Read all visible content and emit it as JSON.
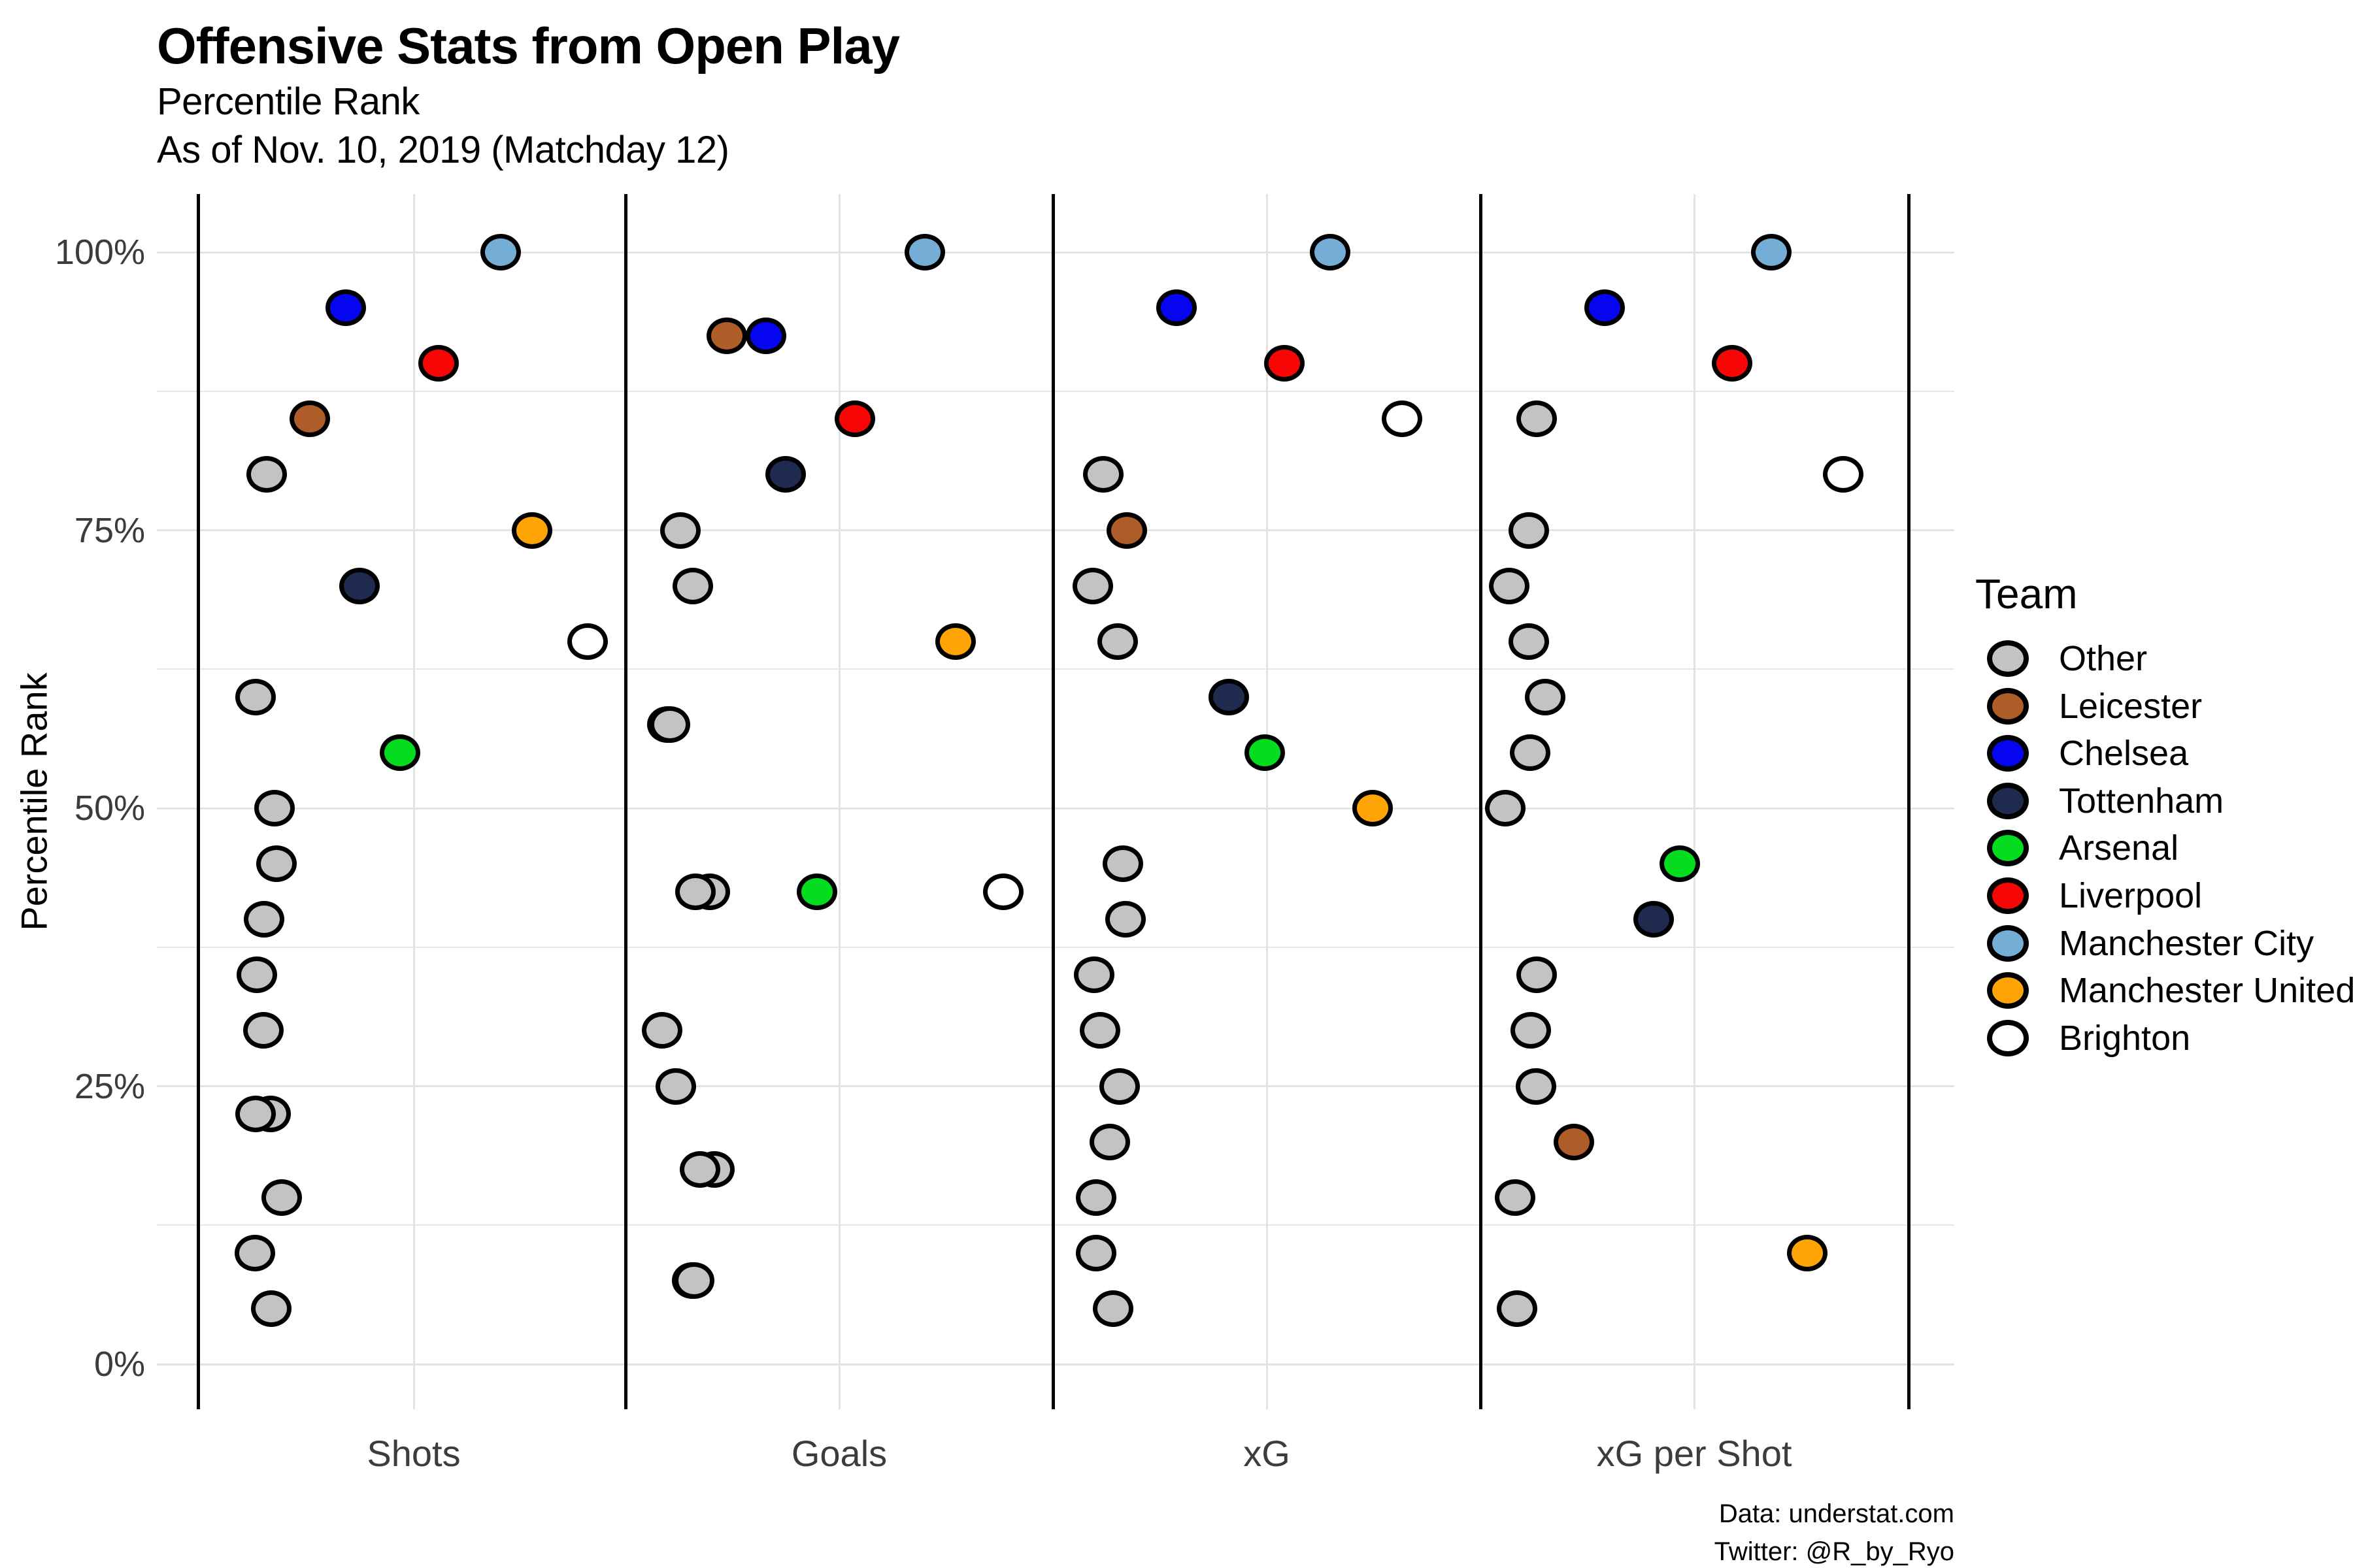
{
  "titles": {
    "title": "Offensive Stats from Open Play",
    "subtitle1": "Percentile Rank",
    "subtitle2": "As of Nov. 10, 2019 (Matchday 12)"
  },
  "y_axis_title": "Percentile Rank",
  "footer": {
    "line1": "Data: understat.com",
    "line2": "Twitter: @R_by_Ryo"
  },
  "legend": {
    "title": "Team",
    "teams": [
      {
        "name": "Other",
        "color": "#c3c3c3"
      },
      {
        "name": "Leicester",
        "color": "#ae5c28"
      },
      {
        "name": "Chelsea",
        "color": "#0505f0"
      },
      {
        "name": "Tottenham",
        "color": "#1f2a4f"
      },
      {
        "name": "Arsenal",
        "color": "#04dc1f"
      },
      {
        "name": "Liverpool",
        "color": "#f80606"
      },
      {
        "name": "Manchester City",
        "color": "#74aed6"
      },
      {
        "name": "Manchester United",
        "color": "#ffa405"
      },
      {
        "name": "Brighton",
        "color": "#ffffff"
      }
    ]
  },
  "chart_data": {
    "type": "scatter",
    "categories": [
      "Shots",
      "Goals",
      "xG",
      "xG per Shot"
    ],
    "ylabel": "Percentile Rank",
    "ylim": [
      0,
      100
    ],
    "y_major_ticks": [
      0,
      25,
      50,
      75,
      100
    ],
    "y_tick_labels": [
      "0%",
      "25%",
      "50%",
      "75%",
      "100%"
    ],
    "y_minor_ticks": [
      12.5,
      37.5,
      62.5,
      87.5
    ],
    "legend_position": "right",
    "grid": "on",
    "points": [
      {
        "stat": "Shots",
        "team": "Other",
        "pct": 80,
        "x": 408
      },
      {
        "stat": "Shots",
        "team": "Other",
        "pct": 60,
        "x": 391
      },
      {
        "stat": "Shots",
        "team": "Other",
        "pct": 50,
        "x": 420
      },
      {
        "stat": "Shots",
        "team": "Other",
        "pct": 45,
        "x": 423
      },
      {
        "stat": "Shots",
        "team": "Other",
        "pct": 40,
        "x": 404
      },
      {
        "stat": "Shots",
        "team": "Other",
        "pct": 35,
        "x": 393
      },
      {
        "stat": "Shots",
        "team": "Other",
        "pct": 30,
        "x": 403
      },
      {
        "stat": "Shots",
        "team": "Other",
        "pct": 22.5,
        "x": 414
      },
      {
        "stat": "Shots",
        "team": "Other",
        "pct": 22.5,
        "x": 391
      },
      {
        "stat": "Shots",
        "team": "Other",
        "pct": 15,
        "x": 431
      },
      {
        "stat": "Shots",
        "team": "Other",
        "pct": 10,
        "x": 390
      },
      {
        "stat": "Shots",
        "team": "Other",
        "pct": 5,
        "x": 415
      },
      {
        "stat": "Shots",
        "team": "Leicester",
        "pct": 85,
        "x": 474
      },
      {
        "stat": "Shots",
        "team": "Chelsea",
        "pct": 95,
        "x": 529
      },
      {
        "stat": "Shots",
        "team": "Tottenham",
        "pct": 70,
        "x": 550
      },
      {
        "stat": "Shots",
        "team": "Arsenal",
        "pct": 55,
        "x": 612
      },
      {
        "stat": "Shots",
        "team": "Liverpool",
        "pct": 90,
        "x": 671
      },
      {
        "stat": "Shots",
        "team": "Manchester City",
        "pct": 100,
        "x": 766
      },
      {
        "stat": "Shots",
        "team": "Manchester United",
        "pct": 75,
        "x": 814
      },
      {
        "stat": "Shots",
        "team": "Brighton",
        "pct": 65,
        "x": 899
      },
      {
        "stat": "Goals",
        "team": "Other",
        "pct": 75,
        "x": 1041
      },
      {
        "stat": "Goals",
        "team": "Other",
        "pct": 70,
        "x": 1060
      },
      {
        "stat": "Goals",
        "team": "Other",
        "pct": 57.5,
        "x": 1021
      },
      {
        "stat": "Goals",
        "team": "Other",
        "pct": 57.5,
        "x": 1025
      },
      {
        "stat": "Goals",
        "team": "Other",
        "pct": 42.5,
        "x": 1086
      },
      {
        "stat": "Goals",
        "team": "Other",
        "pct": 42.5,
        "x": 1064
      },
      {
        "stat": "Goals",
        "team": "Other",
        "pct": 30,
        "x": 1013
      },
      {
        "stat": "Goals",
        "team": "Other",
        "pct": 25,
        "x": 1034
      },
      {
        "stat": "Goals",
        "team": "Other",
        "pct": 17.5,
        "x": 1093
      },
      {
        "stat": "Goals",
        "team": "Other",
        "pct": 17.5,
        "x": 1071
      },
      {
        "stat": "Goals",
        "team": "Other",
        "pct": 7.5,
        "x": 1059
      },
      {
        "stat": "Goals",
        "team": "Other",
        "pct": 7.5,
        "x": 1062
      },
      {
        "stat": "Goals",
        "team": "Leicester",
        "pct": 92.5,
        "x": 1112
      },
      {
        "stat": "Goals",
        "team": "Chelsea",
        "pct": 92.5,
        "x": 1172
      },
      {
        "stat": "Goals",
        "team": "Tottenham",
        "pct": 80,
        "x": 1202
      },
      {
        "stat": "Goals",
        "team": "Arsenal",
        "pct": 42.5,
        "x": 1250
      },
      {
        "stat": "Goals",
        "team": "Liverpool",
        "pct": 85,
        "x": 1308
      },
      {
        "stat": "Goals",
        "team": "Manchester City",
        "pct": 100,
        "x": 1415
      },
      {
        "stat": "Goals",
        "team": "Manchester United",
        "pct": 65,
        "x": 1462
      },
      {
        "stat": "Goals",
        "team": "Brighton",
        "pct": 42.5,
        "x": 1535
      },
      {
        "stat": "xG",
        "team": "Other",
        "pct": 80,
        "x": 1688
      },
      {
        "stat": "xG",
        "team": "Other",
        "pct": 70,
        "x": 1672
      },
      {
        "stat": "xG",
        "team": "Other",
        "pct": 65,
        "x": 1710
      },
      {
        "stat": "xG",
        "team": "Other",
        "pct": 45,
        "x": 1718
      },
      {
        "stat": "xG",
        "team": "Other",
        "pct": 40,
        "x": 1722
      },
      {
        "stat": "xG",
        "team": "Other",
        "pct": 35,
        "x": 1674
      },
      {
        "stat": "xG",
        "team": "Other",
        "pct": 30,
        "x": 1683
      },
      {
        "stat": "xG",
        "team": "Other",
        "pct": 25,
        "x": 1713
      },
      {
        "stat": "xG",
        "team": "Other",
        "pct": 20,
        "x": 1698
      },
      {
        "stat": "xG",
        "team": "Other",
        "pct": 15,
        "x": 1677
      },
      {
        "stat": "xG",
        "team": "Other",
        "pct": 10,
        "x": 1677
      },
      {
        "stat": "xG",
        "team": "Other",
        "pct": 5,
        "x": 1703
      },
      {
        "stat": "xG",
        "team": "Leicester",
        "pct": 75,
        "x": 1724
      },
      {
        "stat": "xG",
        "team": "Chelsea",
        "pct": 95,
        "x": 1800
      },
      {
        "stat": "xG",
        "team": "Tottenham",
        "pct": 60,
        "x": 1880
      },
      {
        "stat": "xG",
        "team": "Arsenal",
        "pct": 55,
        "x": 1935
      },
      {
        "stat": "xG",
        "team": "Liverpool",
        "pct": 90,
        "x": 1965
      },
      {
        "stat": "xG",
        "team": "Manchester City",
        "pct": 100,
        "x": 2035
      },
      {
        "stat": "xG",
        "team": "Manchester United",
        "pct": 50,
        "x": 2100
      },
      {
        "stat": "xG",
        "team": "Brighton",
        "pct": 85,
        "x": 2145
      },
      {
        "stat": "xG per Shot",
        "team": "Other",
        "pct": 85,
        "x": 2351
      },
      {
        "stat": "xG per Shot",
        "team": "Other",
        "pct": 75,
        "x": 2339
      },
      {
        "stat": "xG per Shot",
        "team": "Other",
        "pct": 70,
        "x": 2309
      },
      {
        "stat": "xG per Shot",
        "team": "Other",
        "pct": 65,
        "x": 2339
      },
      {
        "stat": "xG per Shot",
        "team": "Other",
        "pct": 60,
        "x": 2364
      },
      {
        "stat": "xG per Shot",
        "team": "Other",
        "pct": 55,
        "x": 2341
      },
      {
        "stat": "xG per Shot",
        "team": "Other",
        "pct": 50,
        "x": 2303
      },
      {
        "stat": "xG per Shot",
        "team": "Other",
        "pct": 35,
        "x": 2351
      },
      {
        "stat": "xG per Shot",
        "team": "Other",
        "pct": 30,
        "x": 2342
      },
      {
        "stat": "xG per Shot",
        "team": "Other",
        "pct": 25,
        "x": 2350
      },
      {
        "stat": "xG per Shot",
        "team": "Other",
        "pct": 15,
        "x": 2318
      },
      {
        "stat": "xG per Shot",
        "team": "Other",
        "pct": 5,
        "x": 2321
      },
      {
        "stat": "xG per Shot",
        "team": "Leicester",
        "pct": 20,
        "x": 2408
      },
      {
        "stat": "xG per Shot",
        "team": "Chelsea",
        "pct": 95,
        "x": 2455
      },
      {
        "stat": "xG per Shot",
        "team": "Tottenham",
        "pct": 40,
        "x": 2530
      },
      {
        "stat": "xG per Shot",
        "team": "Arsenal",
        "pct": 45,
        "x": 2570
      },
      {
        "stat": "xG per Shot",
        "team": "Liverpool",
        "pct": 90,
        "x": 2650
      },
      {
        "stat": "xG per Shot",
        "team": "Manchester City",
        "pct": 100,
        "x": 2710
      },
      {
        "stat": "xG per Shot",
        "team": "Manchester United",
        "pct": 10,
        "x": 2765
      },
      {
        "stat": "xG per Shot",
        "team": "Brighton",
        "pct": 80,
        "x": 2820
      }
    ]
  }
}
